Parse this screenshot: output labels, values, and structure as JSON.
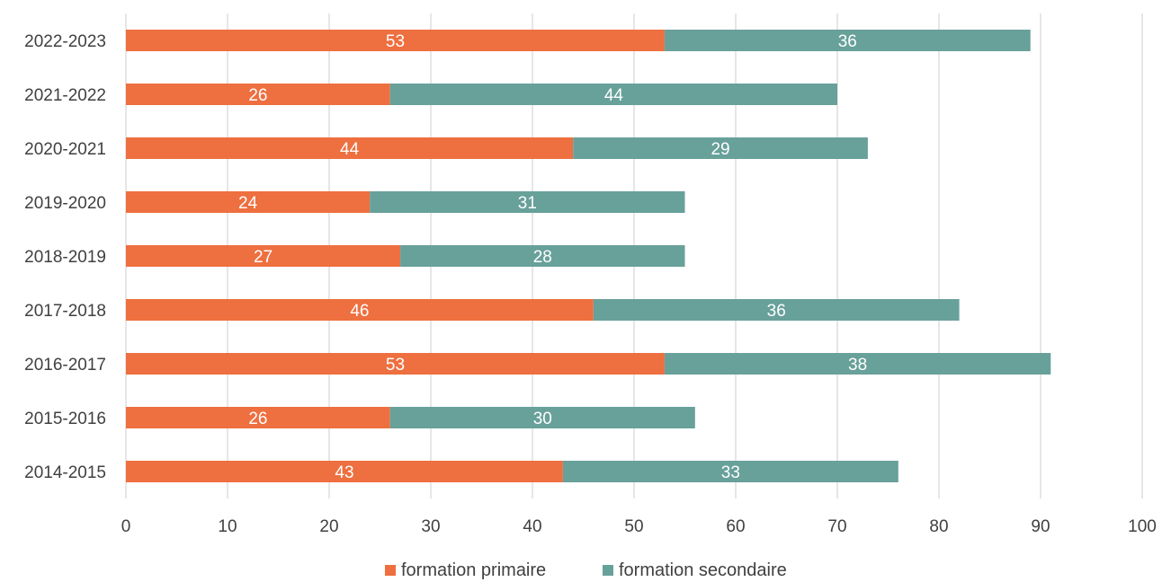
{
  "chart_data": {
    "type": "bar",
    "orientation": "horizontal",
    "stacked": true,
    "categories": [
      "2022-2023",
      "2021-2022",
      "2020-2021",
      "2019-2020",
      "2018-2019",
      "2017-2018",
      "2016-2017",
      "2015-2016",
      "2014-2015"
    ],
    "series": [
      {
        "name": "formation primaire",
        "color": "#ee6f3f",
        "values": [
          53,
          26,
          44,
          24,
          27,
          46,
          53,
          26,
          43
        ]
      },
      {
        "name": "formation secondaire",
        "color": "#68a09a",
        "values": [
          36,
          44,
          29,
          31,
          28,
          36,
          38,
          30,
          33
        ]
      }
    ],
    "xlim": [
      0,
      100
    ],
    "x_ticks": [
      "0",
      "10",
      "20",
      "30",
      "40",
      "50",
      "60",
      "70",
      "80",
      "90",
      "100"
    ],
    "grid": "vertical",
    "legend_position": "bottom",
    "data_labels": true
  }
}
